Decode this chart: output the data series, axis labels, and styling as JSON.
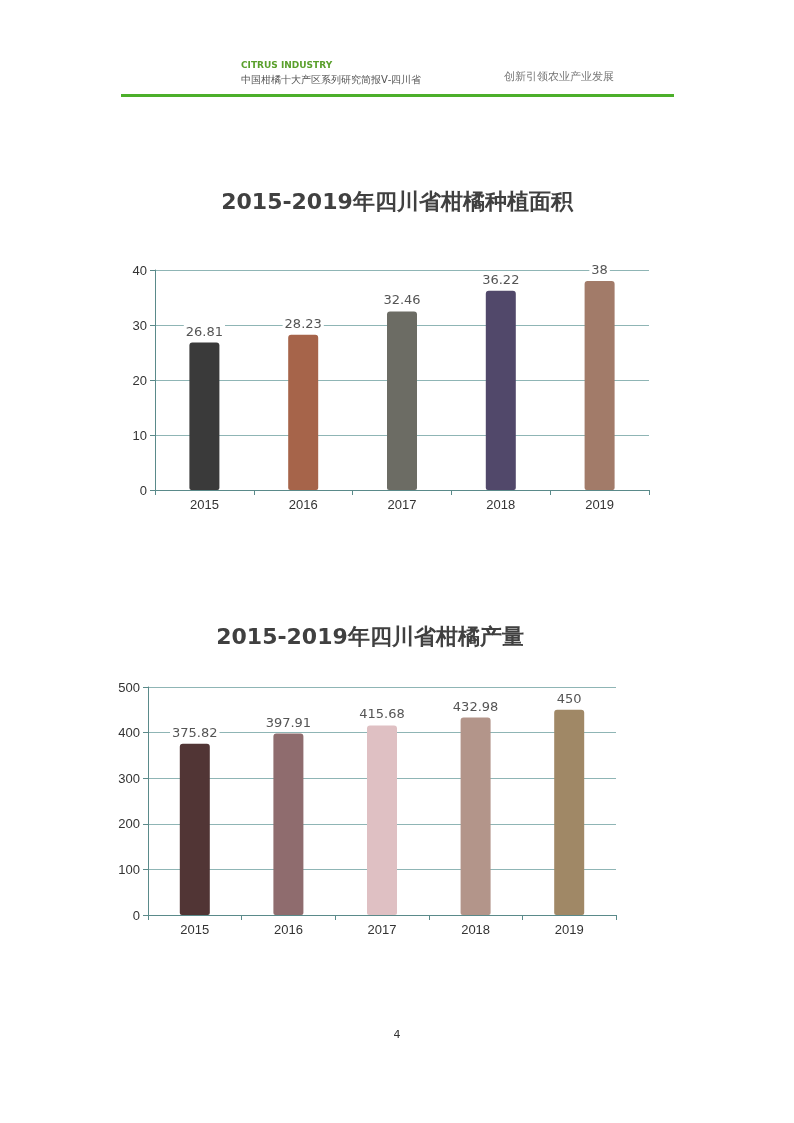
{
  "chart_data": [
    {
      "type": "bar",
      "title": "2015-2019年四川省柑橘种植面积",
      "categories": [
        "2015",
        "2016",
        "2017",
        "2018",
        "2019"
      ],
      "values": [
        26.81,
        28.23,
        32.46,
        36.22,
        38
      ],
      "colors": [
        "#3a3a3a",
        "#a6644a",
        "#6c6c64",
        "#51486a",
        "#a27b69"
      ],
      "ylim": [
        0,
        40
      ],
      "yticks": [
        0,
        10,
        20,
        30,
        40
      ],
      "grid": "y",
      "data_labels": true,
      "annotations": [
        "CITRUS INDUSTRY",
        "中国柑橘十大产区系列研究简报Ⅴ-四川省",
        "创新引领农业产业发展"
      ]
    },
    {
      "type": "bar",
      "title": "2015-2019年四川省柑橘产量",
      "categories": [
        "2015",
        "2016",
        "2017",
        "2018",
        "2019"
      ],
      "values": [
        375.82,
        397.91,
        415.68,
        432.98,
        450
      ],
      "colors": [
        "#513535",
        "#8f6c6e",
        "#dfc0c3",
        "#b3958a",
        "#a08866"
      ],
      "ylim": [
        0,
        500
      ],
      "yticks": [
        0,
        100,
        200,
        300,
        400,
        500
      ],
      "grid": "y",
      "data_labels": true,
      "annotations": [
        "4"
      ]
    }
  ]
}
